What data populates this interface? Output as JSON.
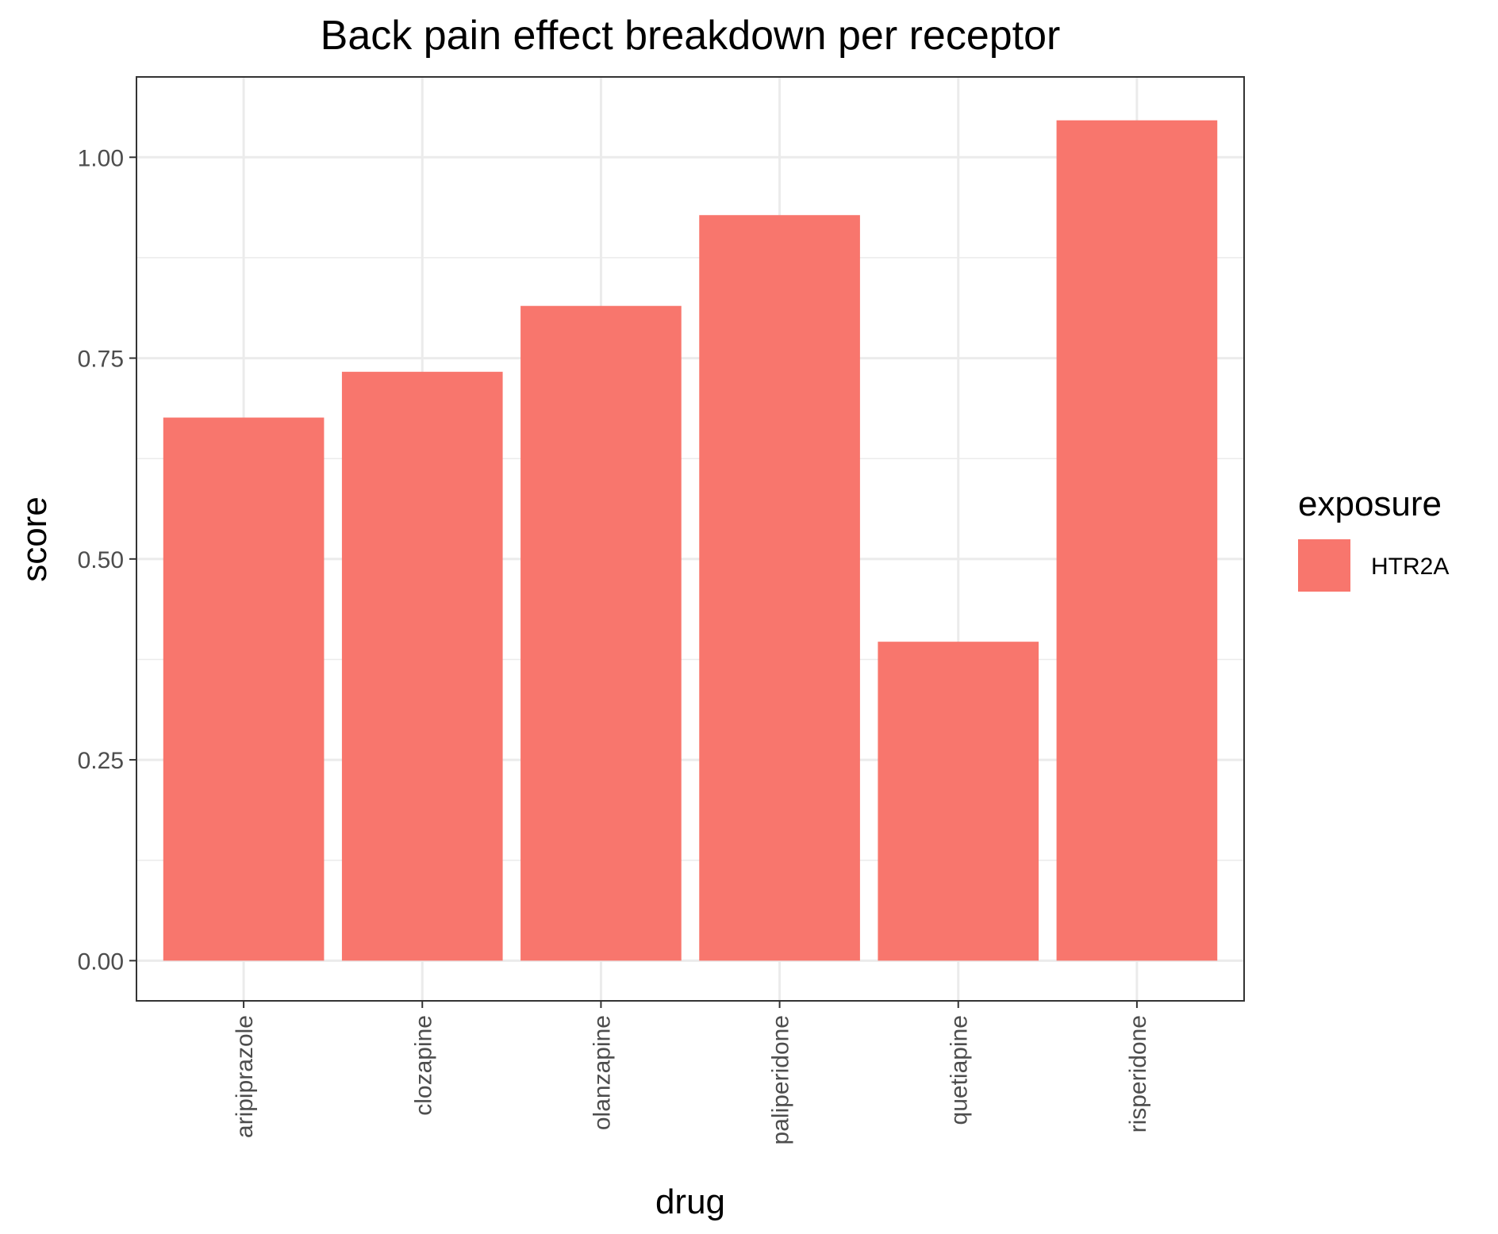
{
  "chart_data": {
    "type": "bar",
    "title": "Back pain effect breakdown per receptor",
    "xlabel": "drug",
    "ylabel": "score",
    "categories": [
      "aripiprazole",
      "clozapine",
      "olanzapine",
      "paliperidone",
      "quetiapine",
      "risperidone"
    ],
    "series": [
      {
        "name": "HTR2A",
        "values": [
          0.676,
          0.733,
          0.815,
          0.928,
          0.397,
          1.046
        ]
      }
    ],
    "ylim": [
      -0.05,
      1.1
    ],
    "yticks": [
      0,
      0.25,
      0.5,
      0.75,
      1.0
    ],
    "ytick_labels": [
      "0.00",
      "0.25",
      "0.50",
      "0.75",
      "1.00"
    ],
    "grid": true,
    "legend": {
      "title": "exposure",
      "position": "right"
    },
    "colors": {
      "bar": "#F8766D",
      "grid": "#EBEBEB",
      "panel_border": "#333333",
      "tick": "#333333"
    }
  }
}
